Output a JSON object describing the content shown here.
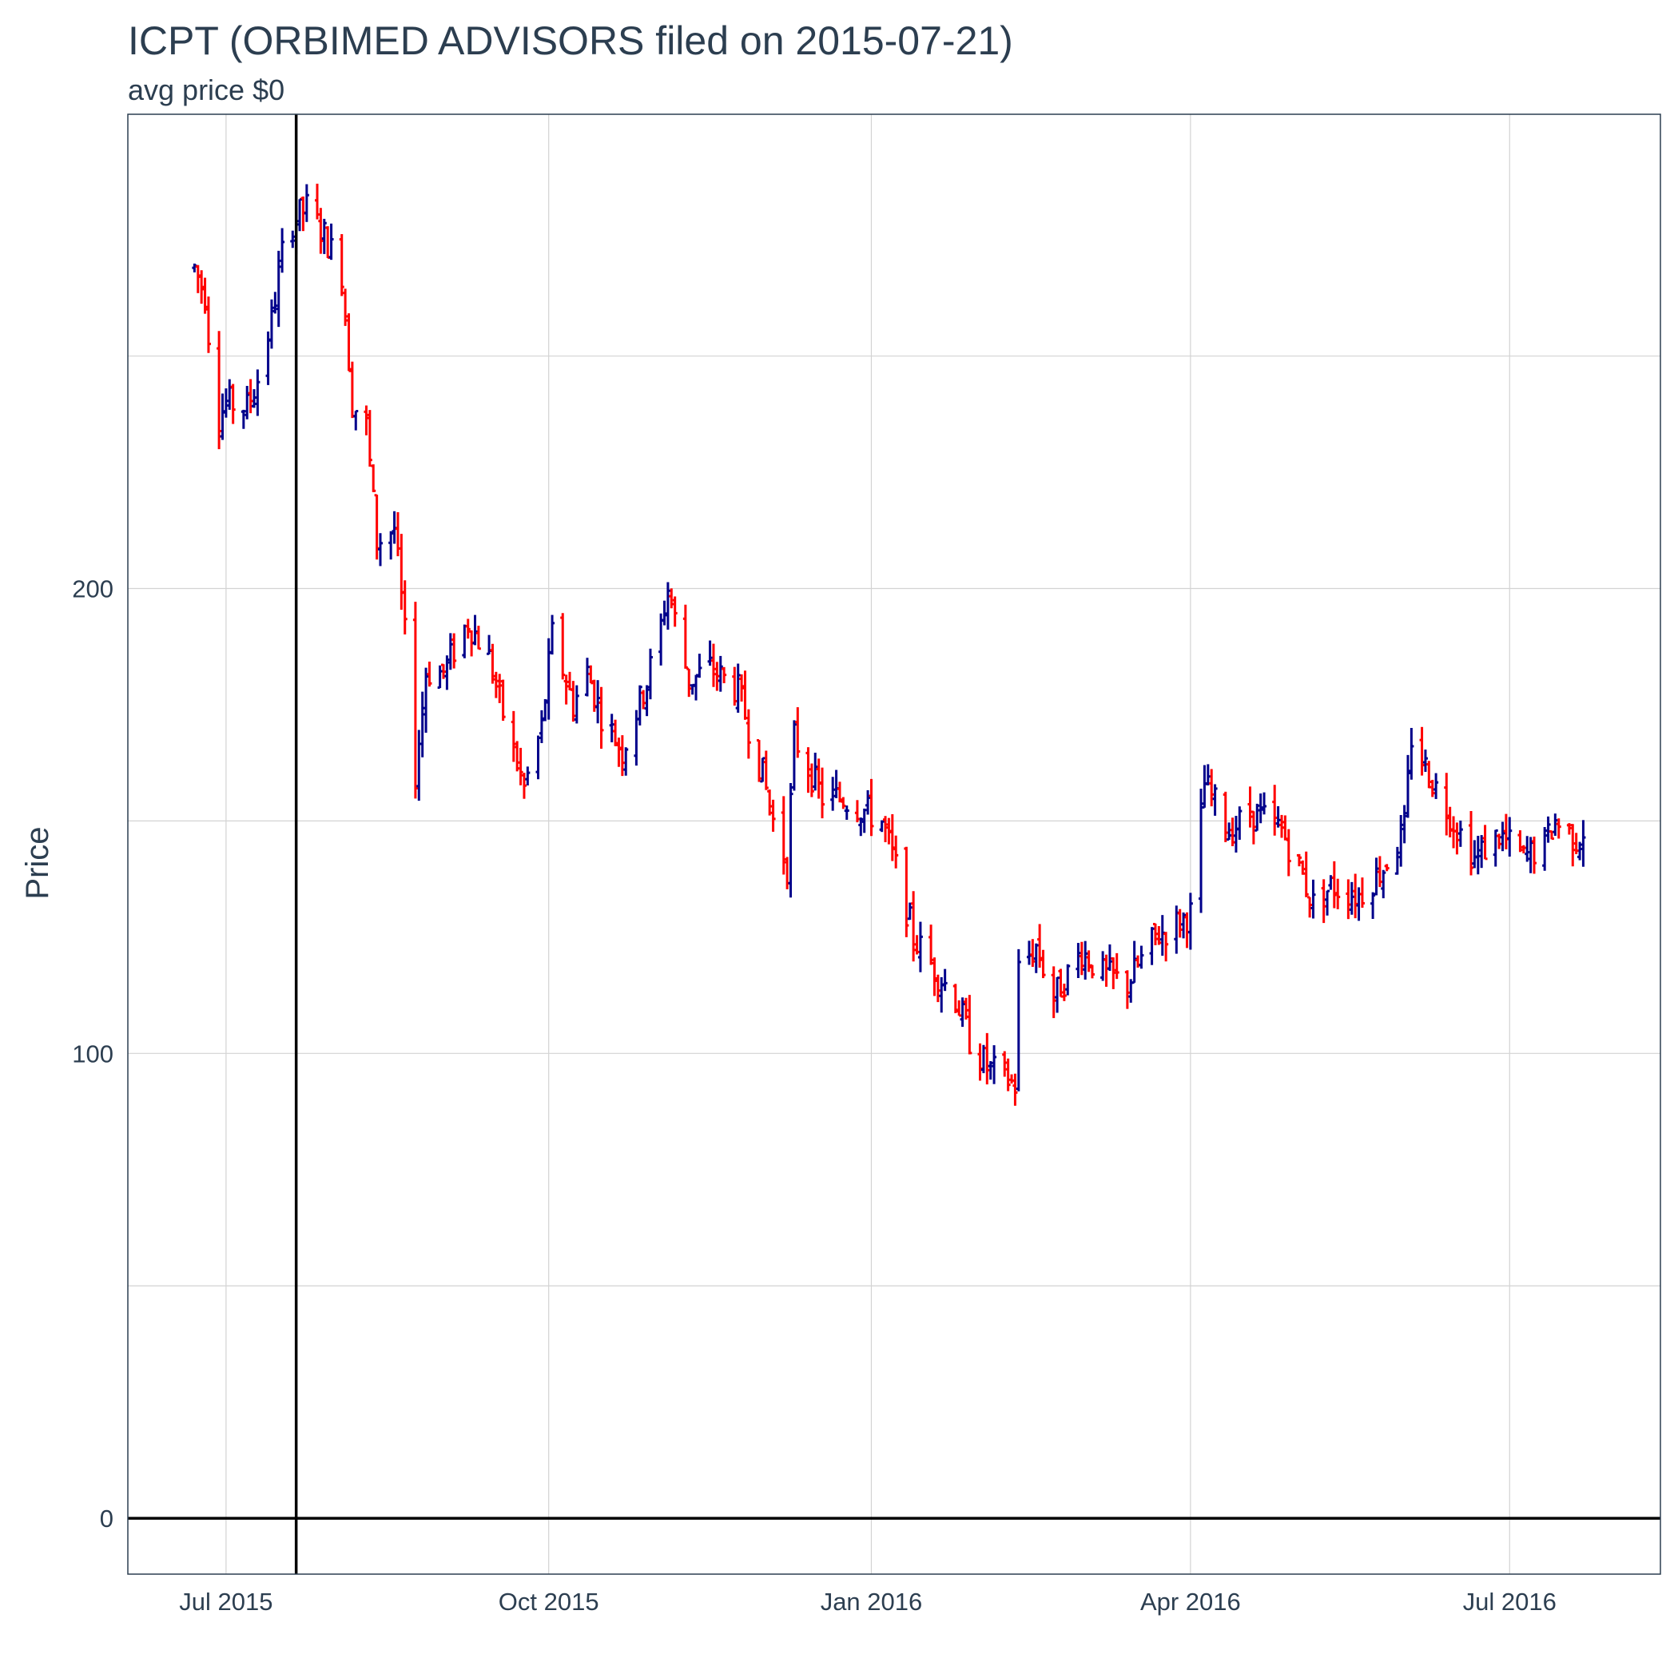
{
  "chart_data": {
    "type": "ohlc",
    "title": "ICPT (ORBIMED ADVISORS filed on 2015-07-21)",
    "subtitle": "avg price $0",
    "ylabel": "Price",
    "xlabel": "",
    "ylim": [
      -12,
      302
    ],
    "xlim": [
      "2015-06-03",
      "2016-08-13"
    ],
    "x_ticks": [
      {
        "date": "2015-07-01",
        "label": "Jul 2015"
      },
      {
        "date": "2015-10-01",
        "label": "Oct 2015"
      },
      {
        "date": "2016-01-01",
        "label": "Jan 2016"
      },
      {
        "date": "2016-04-01",
        "label": "Apr 2016"
      },
      {
        "date": "2016-07-01",
        "label": "Jul 2016"
      }
    ],
    "y_ticks": [
      {
        "value": 0,
        "label": "0"
      },
      {
        "value": 100,
        "label": "100"
      },
      {
        "value": 200,
        "label": "200"
      }
    ],
    "y_minor_grid": [
      50,
      150,
      250
    ],
    "vline_date": "2015-07-21",
    "hline_value": 0,
    "grid": true,
    "legend": "none",
    "colors": {
      "up": "#00008b",
      "down": "#ff0000",
      "text": "#2c3e50",
      "grid": "#d3d3d3",
      "panel_border": "#2c3e50",
      "reference": "#000000"
    },
    "anchors": [
      [
        "2015-06-22",
        269
      ],
      [
        "2015-06-25",
        263
      ],
      [
        "2015-06-26",
        255
      ],
      [
        "2015-06-29",
        237
      ],
      [
        "2015-07-01",
        240
      ],
      [
        "2015-07-07",
        239
      ],
      [
        "2015-07-10",
        245
      ],
      [
        "2015-07-14",
        258
      ],
      [
        "2015-07-17",
        272
      ],
      [
        "2015-07-20",
        279
      ],
      [
        "2015-07-24",
        282
      ],
      [
        "2015-07-29",
        276
      ],
      [
        "2015-08-03",
        268
      ],
      [
        "2015-08-06",
        240
      ],
      [
        "2015-08-10",
        235
      ],
      [
        "2015-08-13",
        210
      ],
      [
        "2015-08-18",
        213
      ],
      [
        "2015-08-21",
        190
      ],
      [
        "2015-08-24",
        160
      ],
      [
        "2015-08-27",
        182
      ],
      [
        "2015-09-01",
        182
      ],
      [
        "2015-09-08",
        193
      ],
      [
        "2015-09-14",
        185
      ],
      [
        "2015-09-18",
        173
      ],
      [
        "2015-09-24",
        157
      ],
      [
        "2015-09-29",
        170
      ],
      [
        "2015-10-02",
        190
      ],
      [
        "2015-10-08",
        175
      ],
      [
        "2015-10-12",
        182
      ],
      [
        "2015-10-16",
        173
      ],
      [
        "2015-10-22",
        165
      ],
      [
        "2015-10-29",
        180
      ],
      [
        "2015-11-02",
        192
      ],
      [
        "2015-11-04",
        200
      ],
      [
        "2015-11-10",
        180
      ],
      [
        "2015-11-16",
        183
      ],
      [
        "2015-11-24",
        178
      ],
      [
        "2015-12-01",
        160
      ],
      [
        "2015-12-04",
        150
      ],
      [
        "2015-12-08",
        140
      ],
      [
        "2015-12-10",
        168
      ],
      [
        "2015-12-18",
        155
      ],
      [
        "2015-12-24",
        155
      ],
      [
        "2016-01-04",
        150
      ],
      [
        "2016-01-08",
        140
      ],
      [
        "2016-01-13",
        125
      ],
      [
        "2016-01-19",
        118
      ],
      [
        "2016-01-25",
        112
      ],
      [
        "2016-01-29",
        103
      ],
      [
        "2016-02-03",
        97
      ],
      [
        "2016-02-08",
        95
      ],
      [
        "2016-02-11",
        93
      ],
      [
        "2016-02-12",
        118
      ],
      [
        "2016-02-17",
        123
      ],
      [
        "2016-02-22",
        112
      ],
      [
        "2016-03-01",
        122
      ],
      [
        "2016-03-07",
        117
      ],
      [
        "2016-03-14",
        115
      ],
      [
        "2016-03-22",
        125
      ],
      [
        "2016-04-01",
        130
      ],
      [
        "2016-04-05",
        158
      ],
      [
        "2016-04-12",
        148
      ],
      [
        "2016-04-19",
        152
      ],
      [
        "2016-04-27",
        148
      ],
      [
        "2016-05-02",
        140
      ],
      [
        "2016-05-06",
        132
      ],
      [
        "2016-05-11",
        136
      ],
      [
        "2016-05-19",
        134
      ],
      [
        "2016-05-26",
        140
      ],
      [
        "2016-06-01",
        148
      ],
      [
        "2016-06-03",
        168
      ],
      [
        "2016-06-08",
        160
      ],
      [
        "2016-06-15",
        150
      ],
      [
        "2016-06-21",
        142
      ],
      [
        "2016-06-28",
        147
      ],
      [
        "2016-07-05",
        142
      ],
      [
        "2016-07-11",
        145
      ],
      [
        "2016-07-14",
        150
      ],
      [
        "2016-07-20",
        146
      ],
      [
        "2016-07-22",
        148
      ]
    ],
    "note": "Daily OHLC bars (blue = close above open, red = close below open) sampled along the price path through the anchor points."
  }
}
